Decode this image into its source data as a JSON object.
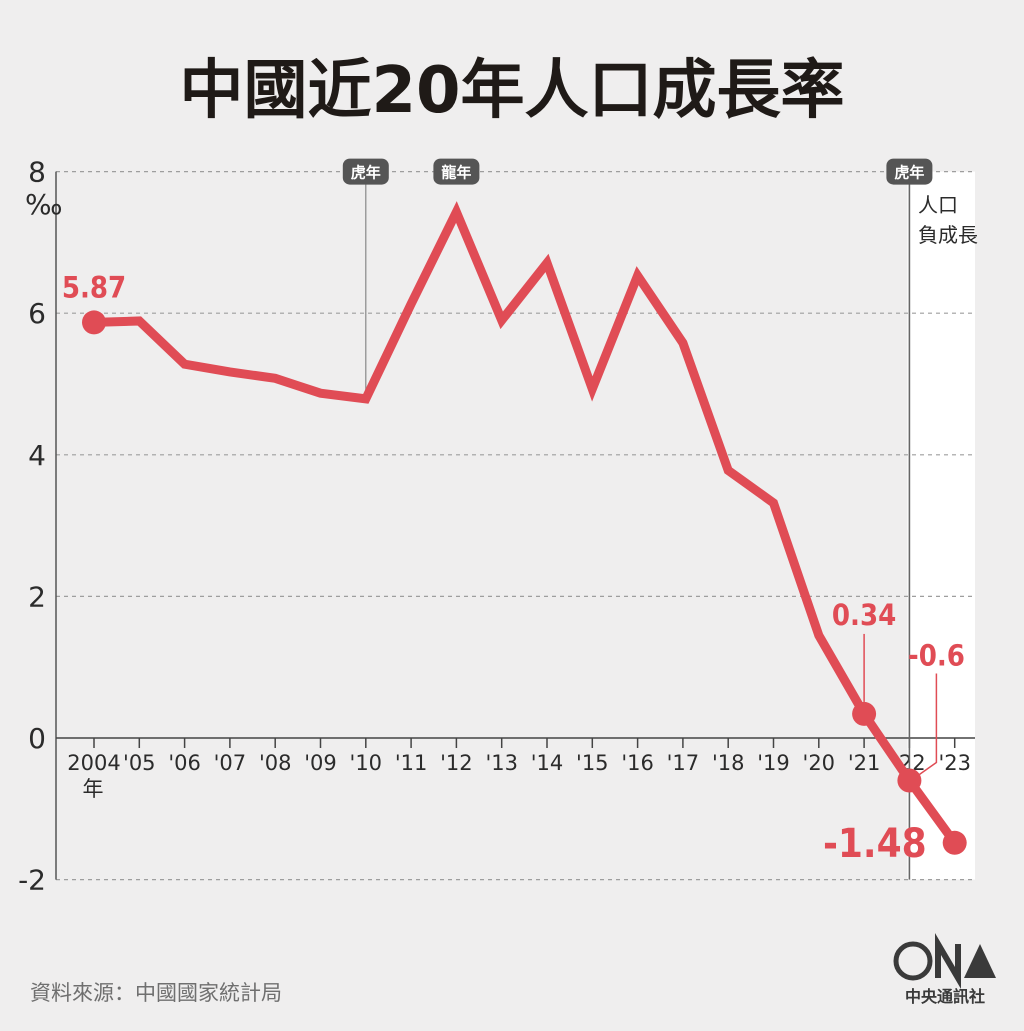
{
  "title": "中國近20年人口成長率",
  "source": "資料來源：中國國家統計局",
  "logo_text": "中央通訊社",
  "negative_zone_label": [
    "人口",
    "負成長"
  ],
  "unit": "‰",
  "year_suffix": "年",
  "colors": {
    "line": "#e04c55",
    "tag": "#555555",
    "background": "#efeeee",
    "negative_zone": "#ffffff"
  },
  "chart_data": {
    "type": "line",
    "title": "中國近20年人口成長率",
    "xlabel": "",
    "ylabel": "‰",
    "ylim": [
      -2,
      8
    ],
    "yticks": [
      -2,
      0,
      2,
      4,
      6,
      8
    ],
    "grid": true,
    "categories": [
      "2004",
      "'05",
      "'06",
      "'07",
      "'08",
      "'09",
      "'10",
      "'11",
      "'12",
      "'13",
      "'14",
      "'15",
      "'16",
      "'17",
      "'18",
      "'19",
      "'20",
      "'21",
      "'22",
      "'23"
    ],
    "series": [
      {
        "values": [
          5.87,
          5.89,
          5.28,
          5.17,
          5.08,
          4.87,
          4.79,
          6.13,
          7.43,
          5.9,
          6.71,
          4.93,
          6.53,
          5.58,
          3.78,
          3.32,
          1.45,
          0.34,
          -0.6,
          -1.48
        ]
      }
    ],
    "data_labels": [
      {
        "index": 0,
        "text": "5.87"
      },
      {
        "index": 17,
        "text": "0.34"
      },
      {
        "index": 18,
        "text": "-0.6"
      },
      {
        "index": 19,
        "text": "-1.48"
      }
    ],
    "annotations": [
      {
        "index": 6,
        "text": "虎年"
      },
      {
        "index": 8,
        "text": "龍年"
      },
      {
        "index": 18,
        "text": "虎年"
      }
    ]
  }
}
